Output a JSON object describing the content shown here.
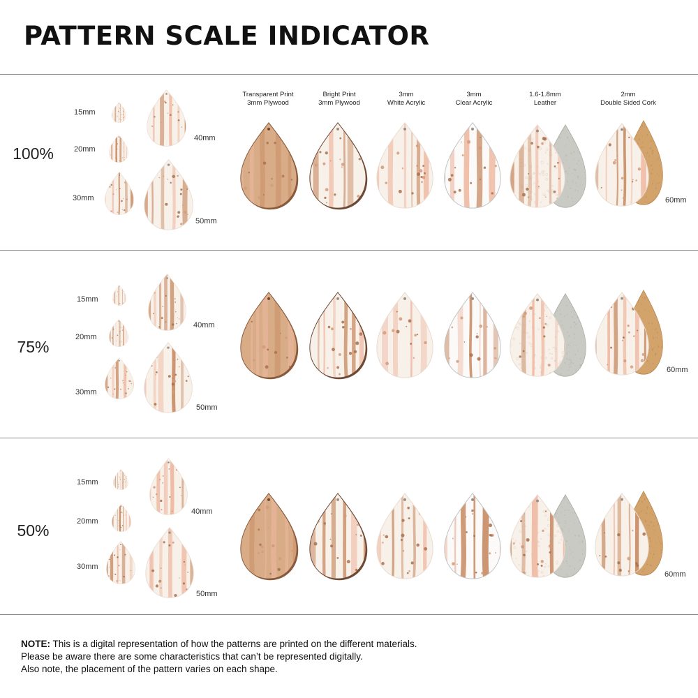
{
  "title": "PATTERN SCALE INDICATOR",
  "materials": [
    {
      "line1": "Transparent Print",
      "line2": "3mm Plywood"
    },
    {
      "line1": "Bright Print",
      "line2": "3mm Plywood"
    },
    {
      "line1": "3mm",
      "line2": "White Acrylic"
    },
    {
      "line1": "3mm",
      "line2": "Clear Acrylic"
    },
    {
      "line1": "1.6-1.8mm",
      "line2": "Leather"
    },
    {
      "line1": "2mm",
      "line2": "Double Sided Cork"
    }
  ],
  "sections": [
    {
      "scale": "100%",
      "sizes": [
        "15mm",
        "20mm",
        "30mm",
        "40mm",
        "50mm"
      ],
      "material_size": "60mm"
    },
    {
      "scale": "75%",
      "sizes": [
        "15mm",
        "20mm",
        "30mm",
        "40mm",
        "50mm"
      ],
      "material_size": "60mm"
    },
    {
      "scale": "50%",
      "sizes": [
        "15mm",
        "20mm",
        "30mm",
        "40mm",
        "50mm"
      ],
      "material_size": "60mm"
    }
  ],
  "note": {
    "lead": "NOTE:",
    "line1": "This is a digital representation of how the patterns are printed on the different materials.",
    "line2": "Please be aware there are some characteristics that can’t be represented digitally.",
    "line3": "Also note, the placement of the pattern varies on each shape."
  },
  "colors": {
    "plywood": "#d7ac86",
    "plywood_edge": "#8a5a3c",
    "white_print": "#f8f1ea",
    "stripe_pink": "#eeb9a2",
    "stripe_tan": "#c98f69",
    "dot_brown": "#a9714e",
    "clear_acrylic": "#fbfaf8",
    "suede": "#c9cac4",
    "cork": "#d3a36c",
    "divider": "#8a8a8a"
  },
  "icons": [
    "teardrop-swatch",
    "leather-suede-back",
    "cork-back"
  ]
}
